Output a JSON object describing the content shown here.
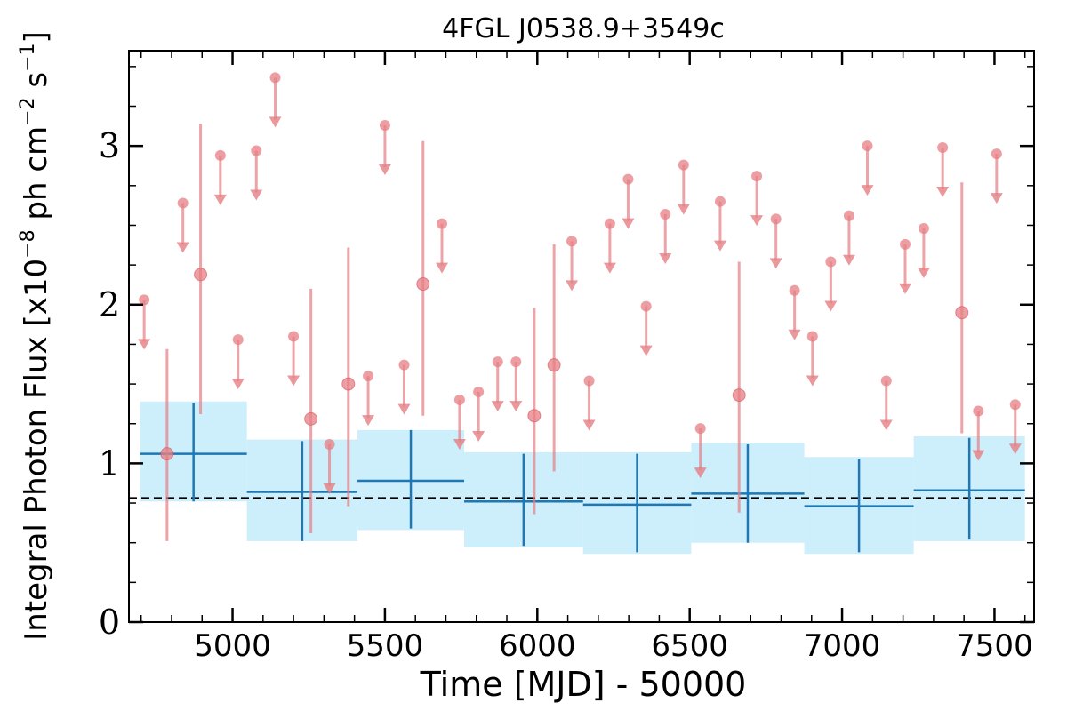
{
  "chart_data": {
    "type": "scatter",
    "title": "4FGL J0538.9+3549c",
    "xlabel": "Time [MJD] - 50000",
    "ylabel_main": "Integral Photon Flux [x10",
    "ylabel_exp1": "−8",
    "ylabel_mid": " ph cm",
    "ylabel_exp2": "−2",
    "ylabel_mid2": " s",
    "ylabel_exp3": "−1",
    "ylabel_end": "]",
    "xlim": [
      4660,
      7630
    ],
    "ylim": [
      0,
      3.6
    ],
    "xticks": [
      {
        "value": 5000,
        "label": "5000"
      },
      {
        "value": 5500,
        "label": "5500"
      },
      {
        "value": 6000,
        "label": "6000"
      },
      {
        "value": 6500,
        "label": "6500"
      },
      {
        "value": 7000,
        "label": "7000"
      },
      {
        "value": 7500,
        "label": "7500"
      }
    ],
    "yticks": [
      {
        "value": 0,
        "label": "0"
      },
      {
        "value": 1,
        "label": "1"
      },
      {
        "value": 2,
        "label": "2"
      },
      {
        "value": 3,
        "label": "3"
      }
    ],
    "xminor_step": 100,
    "yminor_step": 0.25,
    "reference_line": {
      "y": 0.78,
      "style": "dashed",
      "color": "#000000"
    },
    "colors": {
      "binned": "#1f77b4",
      "binned_band": "#cdeefb",
      "points": "#e57e83"
    },
    "binned_series": [
      {
        "x0": 4697,
        "x1": 5047,
        "y": 1.06,
        "ylo": 0.76,
        "yhi": 1.39,
        "elo": 0.76,
        "ehi": 1.38
      },
      {
        "x0": 5047,
        "x1": 5410,
        "y": 0.82,
        "ylo": 0.51,
        "yhi": 1.15,
        "elo": 0.51,
        "ehi": 1.14
      },
      {
        "x0": 5410,
        "x1": 5760,
        "y": 0.89,
        "ylo": 0.58,
        "yhi": 1.21,
        "elo": 0.59,
        "ehi": 1.21
      },
      {
        "x0": 5760,
        "x1": 6150,
        "y": 0.76,
        "ylo": 0.47,
        "yhi": 1.07,
        "elo": 0.48,
        "ehi": 1.06
      },
      {
        "x0": 6150,
        "x1": 6505,
        "y": 0.74,
        "ylo": 0.43,
        "yhi": 1.07,
        "elo": 0.44,
        "ehi": 1.06
      },
      {
        "x0": 6505,
        "x1": 6876,
        "y": 0.81,
        "ylo": 0.5,
        "yhi": 1.13,
        "elo": 0.5,
        "ehi": 1.12
      },
      {
        "x0": 6876,
        "x1": 7235,
        "y": 0.73,
        "ylo": 0.43,
        "yhi": 1.04,
        "elo": 0.44,
        "ehi": 1.03
      },
      {
        "x0": 7235,
        "x1": 7600,
        "y": 0.83,
        "ylo": 0.51,
        "yhi": 1.17,
        "elo": 0.52,
        "ehi": 1.16
      }
    ],
    "detections": [
      {
        "x": 4785,
        "y": 1.06,
        "ylo": 0.51,
        "yhi": 1.72
      },
      {
        "x": 4895,
        "y": 2.19,
        "ylo": 1.31,
        "yhi": 3.14
      },
      {
        "x": 5257,
        "y": 1.28,
        "ylo": 0.56,
        "yhi": 2.1
      },
      {
        "x": 5380,
        "y": 1.5,
        "ylo": 0.73,
        "yhi": 2.36
      },
      {
        "x": 5625,
        "y": 2.13,
        "ylo": 1.3,
        "yhi": 3.03
      },
      {
        "x": 5990,
        "y": 1.3,
        "ylo": 0.68,
        "yhi": 1.98
      },
      {
        "x": 6055,
        "y": 1.62,
        "ylo": 0.95,
        "yhi": 2.38
      },
      {
        "x": 6662,
        "y": 1.43,
        "ylo": 0.69,
        "yhi": 2.27
      },
      {
        "x": 7393,
        "y": 1.95,
        "ylo": 1.19,
        "yhi": 2.77
      }
    ],
    "upper_limits": [
      {
        "x": 4710,
        "y": 2.03
      },
      {
        "x": 4837,
        "y": 2.64
      },
      {
        "x": 4960,
        "y": 2.94
      },
      {
        "x": 5018,
        "y": 1.78
      },
      {
        "x": 5078,
        "y": 2.97
      },
      {
        "x": 5140,
        "y": 3.43
      },
      {
        "x": 5200,
        "y": 1.8
      },
      {
        "x": 5318,
        "y": 1.12
      },
      {
        "x": 5445,
        "y": 1.55
      },
      {
        "x": 5500,
        "y": 3.13
      },
      {
        "x": 5563,
        "y": 1.62
      },
      {
        "x": 5687,
        "y": 2.51
      },
      {
        "x": 5745,
        "y": 1.4
      },
      {
        "x": 5807,
        "y": 1.45
      },
      {
        "x": 5870,
        "y": 1.64
      },
      {
        "x": 5930,
        "y": 1.64
      },
      {
        "x": 6113,
        "y": 2.4
      },
      {
        "x": 6170,
        "y": 1.52
      },
      {
        "x": 6238,
        "y": 2.51
      },
      {
        "x": 6298,
        "y": 2.79
      },
      {
        "x": 6357,
        "y": 1.99
      },
      {
        "x": 6420,
        "y": 2.57
      },
      {
        "x": 6480,
        "y": 2.88
      },
      {
        "x": 6535,
        "y": 1.22
      },
      {
        "x": 6600,
        "y": 2.65
      },
      {
        "x": 6720,
        "y": 2.81
      },
      {
        "x": 6783,
        "y": 2.54
      },
      {
        "x": 6844,
        "y": 2.09
      },
      {
        "x": 6903,
        "y": 1.8
      },
      {
        "x": 6963,
        "y": 2.27
      },
      {
        "x": 7023,
        "y": 2.56
      },
      {
        "x": 7083,
        "y": 3.0
      },
      {
        "x": 7145,
        "y": 1.52
      },
      {
        "x": 7207,
        "y": 2.38
      },
      {
        "x": 7268,
        "y": 2.48
      },
      {
        "x": 7330,
        "y": 2.99
      },
      {
        "x": 7447,
        "y": 1.33
      },
      {
        "x": 7507,
        "y": 2.95
      },
      {
        "x": 7568,
        "y": 1.37
      }
    ]
  }
}
